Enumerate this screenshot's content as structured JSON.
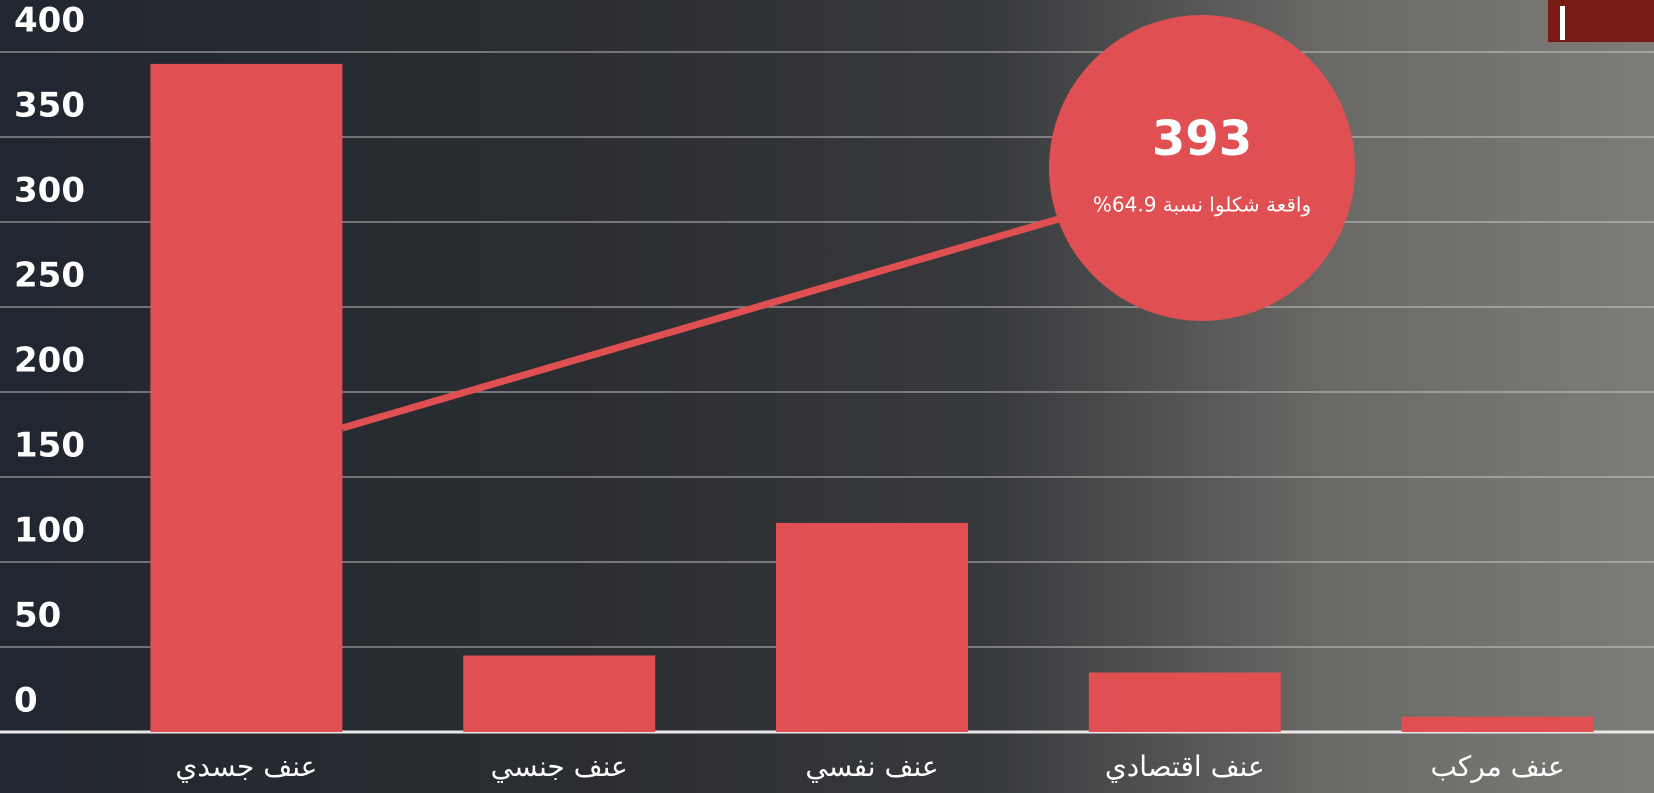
{
  "chart_data": {
    "type": "bar",
    "categories": [
      "عنف جسدي",
      "عنف جنسي",
      "عنف نفسي",
      "عنف اقتصادي",
      "عنف مركب"
    ],
    "values": [
      393,
      45,
      123,
      35,
      9
    ],
    "color": "#e05052",
    "ylim": [
      0,
      400
    ],
    "yticks": [
      0,
      50,
      100,
      150,
      200,
      250,
      300,
      350,
      400
    ],
    "grid": true,
    "annotation": {
      "text": "واقعة شكلوا نسبة 64.9%"
    }
  }
}
